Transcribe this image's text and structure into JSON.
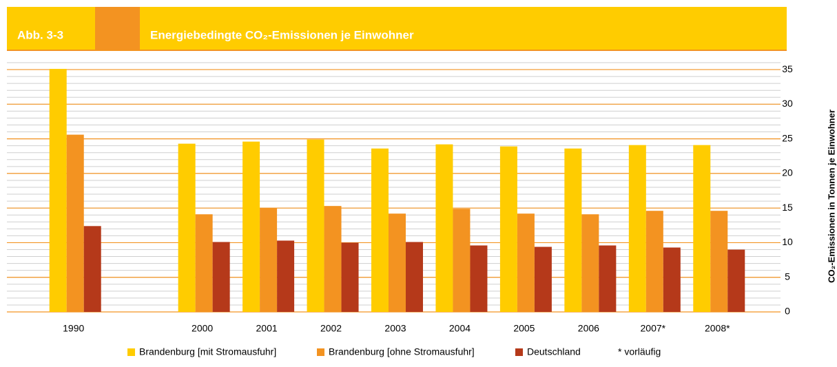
{
  "chart_data": {
    "type": "bar",
    "label": "Abb. 3-3",
    "title": "Energiebedingte CO₂-Emissionen je Einwohner",
    "y_label": "CO₂-Emissionen in  Tonnen je Einwohner",
    "note": "* vorläufig",
    "categories": [
      "1990",
      null,
      "2000",
      "2001",
      "2002",
      "2003",
      "2004",
      "2005",
      "2006",
      "2007*",
      "2008*"
    ],
    "series": [
      {
        "name": "Brandenburg [mit Stromausfuhr]",
        "color": "#FFCC00",
        "values": [
          35.1,
          null,
          24.3,
          24.6,
          24.9,
          23.6,
          24.2,
          23.9,
          23.6,
          24.1,
          24.1
        ]
      },
      {
        "name": "Brandenburg [ohne Stromausfuhr]",
        "color": "#F39321",
        "values": [
          25.6,
          null,
          14.1,
          15.0,
          15.3,
          14.2,
          14.9,
          14.2,
          14.1,
          14.6,
          14.6
        ]
      },
      {
        "name": "Deutschland",
        "color": "#B5391A",
        "values": [
          12.4,
          null,
          10.1,
          10.3,
          10.0,
          10.1,
          9.6,
          9.4,
          9.6,
          9.3,
          9.0
        ]
      }
    ],
    "ylim": [
      0,
      36
    ],
    "yticks": [
      0,
      5,
      10,
      15,
      20,
      25,
      30,
      35
    ],
    "minor_grid_step": 1,
    "grid": true,
    "y_axis_side": "right",
    "legend": "bottom"
  }
}
